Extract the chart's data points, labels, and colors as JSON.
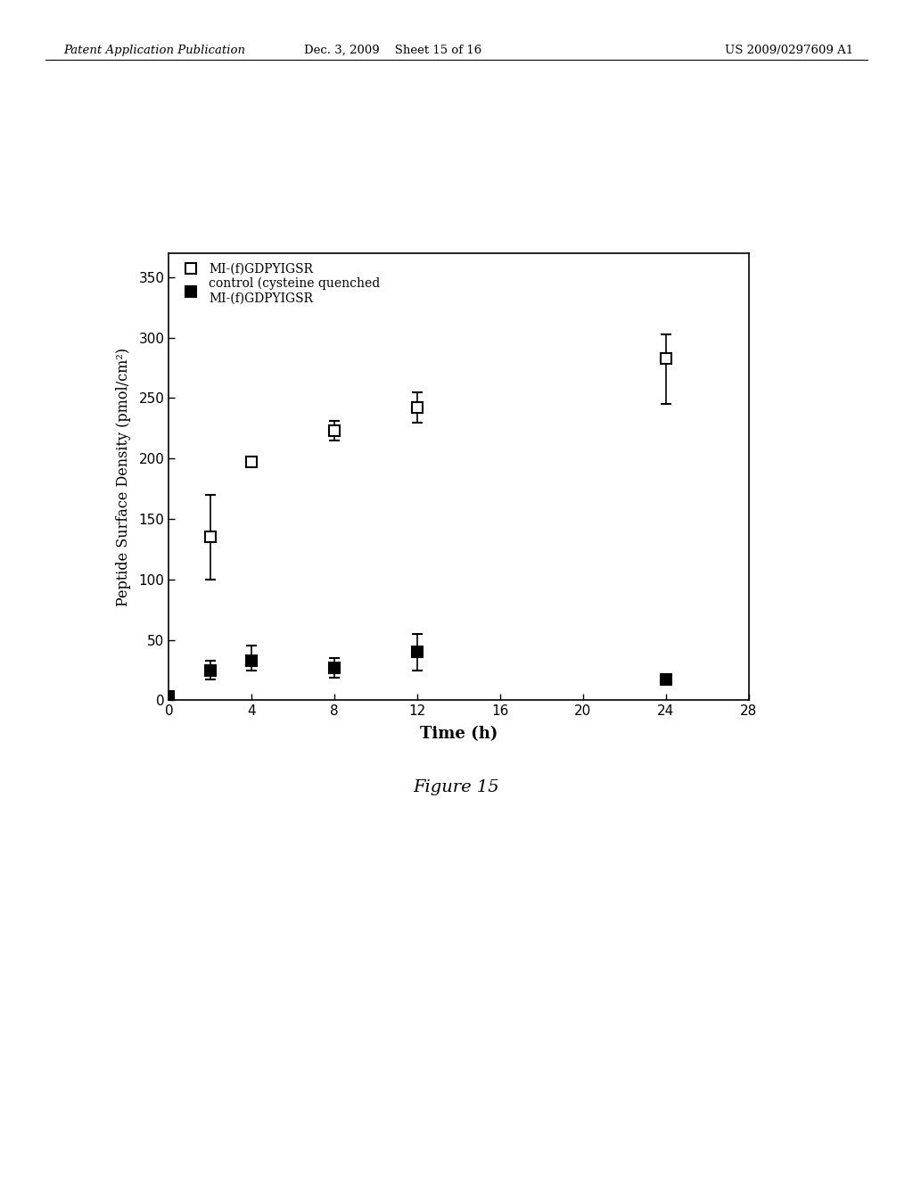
{
  "open_x": [
    0,
    2,
    4,
    8,
    12,
    24
  ],
  "open_y": [
    2,
    135,
    197,
    223,
    242,
    283
  ],
  "open_yerr_low": [
    0,
    35,
    0,
    8,
    12,
    38
  ],
  "open_yerr_high": [
    0,
    35,
    0,
    8,
    13,
    20
  ],
  "fill_x": [
    0,
    2,
    4,
    8,
    12,
    24
  ],
  "fill_y": [
    3,
    25,
    33,
    27,
    40,
    17
  ],
  "fill_yerr_low": [
    0,
    8,
    8,
    8,
    15,
    0
  ],
  "fill_yerr_high": [
    0,
    8,
    12,
    8,
    15,
    0
  ],
  "xlabel": "Time (h)",
  "ylabel": "Peptide Surface Density (pmol/cm²)",
  "xlim": [
    0,
    28
  ],
  "ylim": [
    0,
    370
  ],
  "xticks": [
    0,
    4,
    8,
    12,
    16,
    20,
    24,
    28
  ],
  "yticks": [
    0,
    50,
    100,
    150,
    200,
    250,
    300,
    350
  ],
  "legend_label_open": "MI-(f)GDPYIGSR",
  "legend_label_fill_line1": "control (cysteine quenched",
  "legend_label_fill_line2": "MI-(f)GDPYIGSR",
  "figure_caption": "Figure 15",
  "header_left": "Patent Application Publication",
  "header_mid": "Dec. 3, 2009    Sheet 15 of 16",
  "header_right": "US 2009/0297609 A1",
  "bg_color": "#ffffff",
  "marker_size": 9,
  "capsize": 4,
  "linewidth": 1.2
}
